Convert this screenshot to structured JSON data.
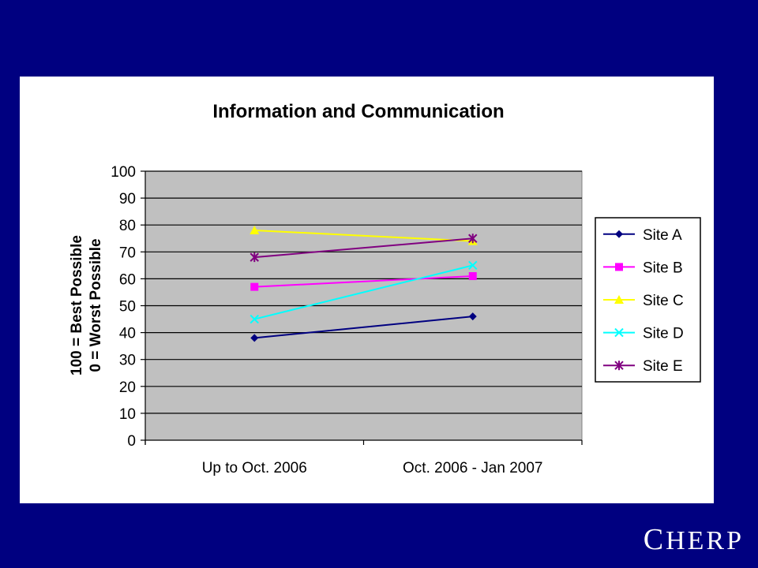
{
  "brand": {
    "first": "C",
    "rest": "HERP"
  },
  "chart_data": {
    "type": "line",
    "title": "Information and Communication",
    "ylabel_line1": "100 = Best Possible",
    "ylabel_line2": "0 = Worst Possible",
    "xlabel": "",
    "categories": [
      "Up to Oct. 2006",
      "Oct. 2006 - Jan 2007"
    ],
    "ylim": [
      0,
      100
    ],
    "yticks": [
      0,
      10,
      20,
      30,
      40,
      50,
      60,
      70,
      80,
      90,
      100
    ],
    "grid": true,
    "legend": "right",
    "plot_background": "#c0c0c0",
    "series": [
      {
        "name": "Site A",
        "values": [
          38,
          46
        ],
        "color": "#000080",
        "marker": "diamond"
      },
      {
        "name": "Site B",
        "values": [
          57,
          61
        ],
        "color": "#ff00ff",
        "marker": "square"
      },
      {
        "name": "Site C",
        "values": [
          78,
          74
        ],
        "color": "#ffff00",
        "marker": "triangle"
      },
      {
        "name": "Site D",
        "values": [
          45,
          65
        ],
        "color": "#00ffff",
        "marker": "x"
      },
      {
        "name": "Site E",
        "values": [
          68,
          75
        ],
        "color": "#800080",
        "marker": "star"
      }
    ]
  }
}
